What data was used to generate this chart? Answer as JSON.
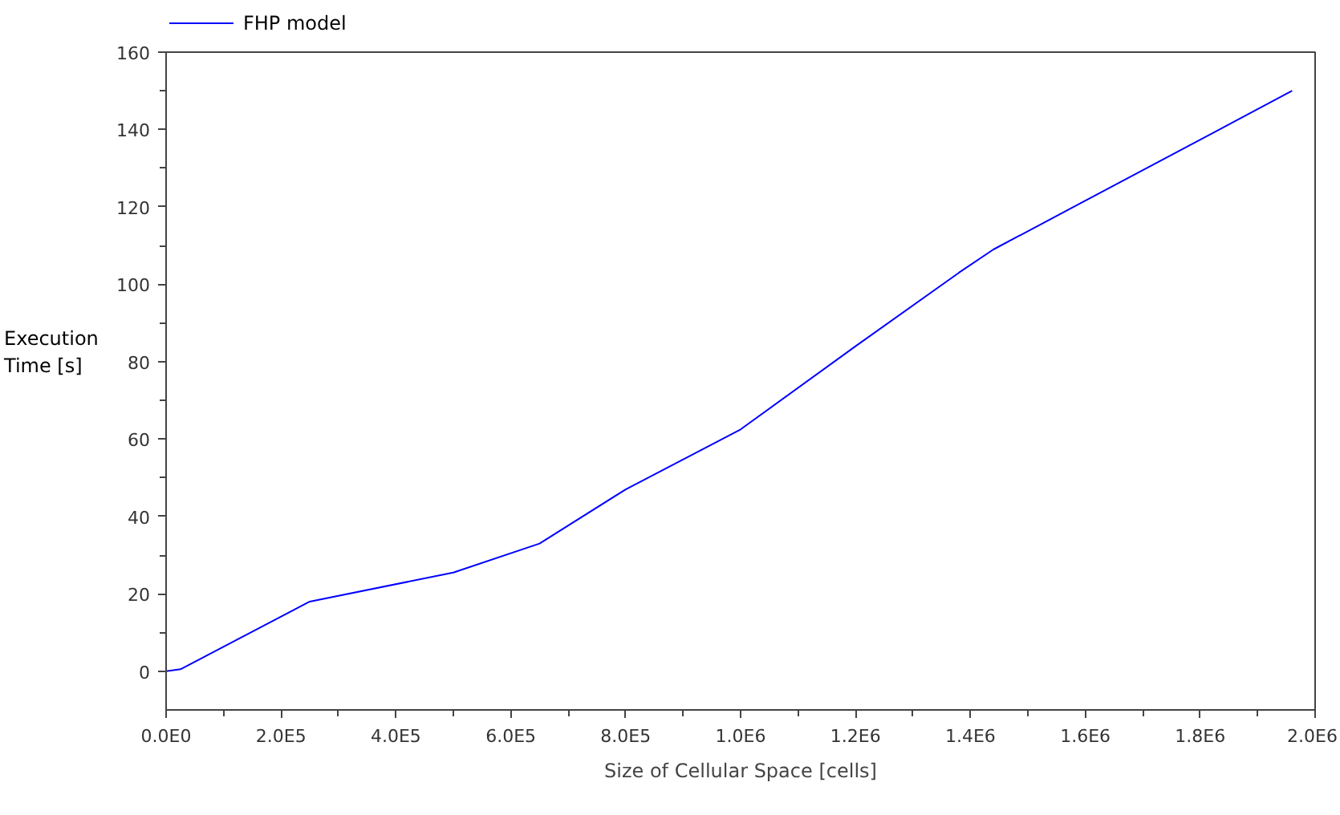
{
  "chart_data": {
    "type": "line",
    "xlabel": "Size of Cellular Space [cells]",
    "ylabel": "Execution\nTime [s]",
    "x": [
      0,
      25000,
      250000,
      500000,
      650000,
      800000,
      1000000,
      1200000,
      1380000,
      1440000,
      1960000
    ],
    "series": [
      {
        "name": "FHP model",
        "color": "#0000ff",
        "values": [
          0,
          0.5,
          18,
          25.5,
          33,
          47,
          62.5,
          84,
          103,
          109,
          150
        ]
      }
    ],
    "xlim": [
      0,
      2000000
    ],
    "xticks": [
      {
        "value": 0,
        "label": "0.0E0"
      },
      {
        "value": 200000,
        "label": "2.0E5"
      },
      {
        "value": 400000,
        "label": "4.0E5"
      },
      {
        "value": 600000,
        "label": "6.0E5"
      },
      {
        "value": 800000,
        "label": "8.0E5"
      },
      {
        "value": 1000000,
        "label": "1.0E6"
      },
      {
        "value": 1200000,
        "label": "1.2E6"
      },
      {
        "value": 1400000,
        "label": "1.4E6"
      },
      {
        "value": 1600000,
        "label": "1.6E6"
      },
      {
        "value": 1800000,
        "label": "1.8E6"
      },
      {
        "value": 2000000,
        "label": "2.0E6"
      }
    ],
    "ylim": [
      -10,
      160
    ],
    "yticks": [
      0,
      20,
      40,
      60,
      80,
      100,
      120,
      140,
      160
    ],
    "grid": false,
    "legend": "top left"
  }
}
